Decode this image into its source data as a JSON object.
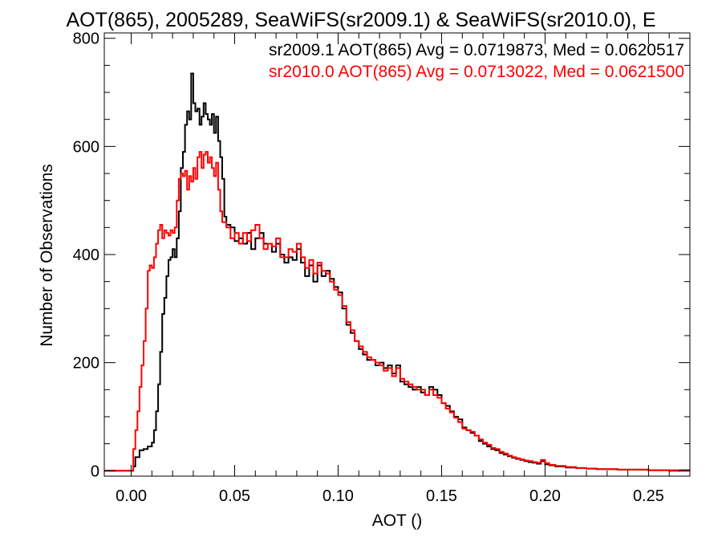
{
  "chart_data": {
    "type": "line",
    "title": "AOT(865), 2005289, SeaWiFS(sr2009.1) & SeaWiFS(sr2010.0), E",
    "xlabel": "AOT ()",
    "ylabel": "Number of Observations",
    "xlim": [
      -0.013,
      0.27
    ],
    "ylim": [
      -10,
      810
    ],
    "xticks": [
      0.0,
      0.05,
      0.1,
      0.15,
      0.2,
      0.25
    ],
    "xtick_labels": [
      "0.00",
      "0.05",
      "0.10",
      "0.15",
      "0.20",
      "0.25"
    ],
    "yticks": [
      0,
      200,
      400,
      600,
      800
    ],
    "ytick_labels": [
      "0",
      "200",
      "400",
      "600",
      "800"
    ],
    "grid": false,
    "step": true,
    "annotations": [
      {
        "text": "sr2009.1 AOT(865) Avg = 0.0719873, Med = 0.0620517",
        "color": "#000000"
      },
      {
        "text": "sr2010.0 AOT(865) Avg = 0.0713022, Med = 0.0621500",
        "color": "#ff0000"
      }
    ],
    "series": [
      {
        "color": "#000000",
        "points": [
          [
            -0.013,
            0
          ],
          [
            0.0,
            0
          ],
          [
            0.001,
            8
          ],
          [
            0.002,
            25
          ],
          [
            0.004,
            38
          ],
          [
            0.006,
            40
          ],
          [
            0.008,
            45
          ],
          [
            0.01,
            52
          ],
          [
            0.011,
            75
          ],
          [
            0.012,
            110
          ],
          [
            0.013,
            160
          ],
          [
            0.014,
            220
          ],
          [
            0.015,
            290
          ],
          [
            0.016,
            320
          ],
          [
            0.017,
            360
          ],
          [
            0.018,
            390
          ],
          [
            0.019,
            395
          ],
          [
            0.02,
            410
          ],
          [
            0.021,
            395
          ],
          [
            0.022,
            430
          ],
          [
            0.023,
            480
          ],
          [
            0.024,
            560
          ],
          [
            0.025,
            590
          ],
          [
            0.026,
            640
          ],
          [
            0.027,
            665
          ],
          [
            0.028,
            650
          ],
          [
            0.029,
            735
          ],
          [
            0.03,
            680
          ],
          [
            0.031,
            665
          ],
          [
            0.032,
            670
          ],
          [
            0.033,
            640
          ],
          [
            0.034,
            655
          ],
          [
            0.035,
            680
          ],
          [
            0.036,
            660
          ],
          [
            0.037,
            650
          ],
          [
            0.038,
            640
          ],
          [
            0.039,
            660
          ],
          [
            0.04,
            625
          ],
          [
            0.041,
            655
          ],
          [
            0.042,
            610
          ],
          [
            0.043,
            580
          ],
          [
            0.044,
            540
          ],
          [
            0.045,
            470
          ],
          [
            0.046,
            455
          ],
          [
            0.048,
            450
          ],
          [
            0.05,
            425
          ],
          [
            0.052,
            430
          ],
          [
            0.054,
            420
          ],
          [
            0.056,
            440
          ],
          [
            0.058,
            410
          ],
          [
            0.06,
            430
          ],
          [
            0.062,
            440
          ],
          [
            0.064,
            420
          ],
          [
            0.066,
            420
          ],
          [
            0.068,
            405
          ],
          [
            0.07,
            420
          ],
          [
            0.072,
            400
          ],
          [
            0.074,
            385
          ],
          [
            0.076,
            395
          ],
          [
            0.078,
            390
          ],
          [
            0.08,
            410
          ],
          [
            0.082,
            385
          ],
          [
            0.084,
            360
          ],
          [
            0.086,
            380
          ],
          [
            0.088,
            350
          ],
          [
            0.09,
            380
          ],
          [
            0.092,
            360
          ],
          [
            0.094,
            370
          ],
          [
            0.096,
            355
          ],
          [
            0.098,
            340
          ],
          [
            0.1,
            330
          ],
          [
            0.102,
            300
          ],
          [
            0.104,
            270
          ],
          [
            0.106,
            255
          ],
          [
            0.108,
            240
          ],
          [
            0.11,
            225
          ],
          [
            0.112,
            215
          ],
          [
            0.114,
            205
          ],
          [
            0.116,
            205
          ],
          [
            0.118,
            195
          ],
          [
            0.12,
            200
          ],
          [
            0.122,
            190
          ],
          [
            0.124,
            195
          ],
          [
            0.126,
            180
          ],
          [
            0.128,
            195
          ],
          [
            0.13,
            165
          ],
          [
            0.132,
            160
          ],
          [
            0.134,
            155
          ],
          [
            0.136,
            150
          ],
          [
            0.138,
            155
          ],
          [
            0.14,
            145
          ],
          [
            0.142,
            140
          ],
          [
            0.144,
            155
          ],
          [
            0.146,
            150
          ],
          [
            0.148,
            140
          ],
          [
            0.15,
            125
          ],
          [
            0.152,
            120
          ],
          [
            0.154,
            110
          ],
          [
            0.156,
            100
          ],
          [
            0.158,
            95
          ],
          [
            0.16,
            80
          ],
          [
            0.162,
            75
          ],
          [
            0.164,
            70
          ],
          [
            0.166,
            65
          ],
          [
            0.168,
            55
          ],
          [
            0.17,
            50
          ],
          [
            0.172,
            45
          ],
          [
            0.174,
            40
          ],
          [
            0.176,
            38
          ],
          [
            0.178,
            33
          ],
          [
            0.18,
            30
          ],
          [
            0.182,
            27
          ],
          [
            0.184,
            24
          ],
          [
            0.186,
            22
          ],
          [
            0.188,
            20
          ],
          [
            0.19,
            18
          ],
          [
            0.192,
            16
          ],
          [
            0.194,
            15
          ],
          [
            0.196,
            13
          ],
          [
            0.198,
            18
          ],
          [
            0.2,
            12
          ],
          [
            0.202,
            10
          ],
          [
            0.205,
            8
          ],
          [
            0.21,
            6
          ],
          [
            0.215,
            5
          ],
          [
            0.22,
            4
          ],
          [
            0.225,
            3
          ],
          [
            0.23,
            3
          ],
          [
            0.235,
            2
          ],
          [
            0.24,
            2
          ],
          [
            0.245,
            2
          ],
          [
            0.25,
            1
          ],
          [
            0.255,
            1
          ],
          [
            0.26,
            0
          ],
          [
            0.265,
            1
          ],
          [
            0.27,
            0
          ]
        ]
      },
      {
        "color": "#ff0000",
        "points": [
          [
            -0.013,
            0
          ],
          [
            0.0,
            0
          ],
          [
            0.001,
            40
          ],
          [
            0.002,
            75
          ],
          [
            0.003,
            110
          ],
          [
            0.004,
            155
          ],
          [
            0.005,
            195
          ],
          [
            0.006,
            240
          ],
          [
            0.007,
            300
          ],
          [
            0.008,
            370
          ],
          [
            0.009,
            380
          ],
          [
            0.01,
            375
          ],
          [
            0.011,
            395
          ],
          [
            0.012,
            420
          ],
          [
            0.013,
            445
          ],
          [
            0.014,
            455
          ],
          [
            0.015,
            430
          ],
          [
            0.016,
            445
          ],
          [
            0.017,
            440
          ],
          [
            0.018,
            435
          ],
          [
            0.019,
            445
          ],
          [
            0.02,
            440
          ],
          [
            0.021,
            450
          ],
          [
            0.022,
            500
          ],
          [
            0.023,
            540
          ],
          [
            0.024,
            550
          ],
          [
            0.025,
            545
          ],
          [
            0.026,
            555
          ],
          [
            0.027,
            520
          ],
          [
            0.028,
            545
          ],
          [
            0.029,
            535
          ],
          [
            0.03,
            560
          ],
          [
            0.031,
            540
          ],
          [
            0.032,
            580
          ],
          [
            0.033,
            590
          ],
          [
            0.034,
            560
          ],
          [
            0.035,
            585
          ],
          [
            0.036,
            590
          ],
          [
            0.037,
            570
          ],
          [
            0.038,
            580
          ],
          [
            0.039,
            560
          ],
          [
            0.04,
            545
          ],
          [
            0.041,
            570
          ],
          [
            0.042,
            520
          ],
          [
            0.043,
            480
          ],
          [
            0.044,
            460
          ],
          [
            0.046,
            450
          ],
          [
            0.048,
            430
          ],
          [
            0.05,
            440
          ],
          [
            0.052,
            420
          ],
          [
            0.054,
            440
          ],
          [
            0.056,
            425
          ],
          [
            0.058,
            445
          ],
          [
            0.06,
            455
          ],
          [
            0.062,
            430
          ],
          [
            0.064,
            410
          ],
          [
            0.066,
            420
          ],
          [
            0.068,
            415
          ],
          [
            0.07,
            430
          ],
          [
            0.072,
            395
          ],
          [
            0.074,
            395
          ],
          [
            0.076,
            410
          ],
          [
            0.078,
            405
          ],
          [
            0.08,
            420
          ],
          [
            0.082,
            395
          ],
          [
            0.084,
            375
          ],
          [
            0.086,
            390
          ],
          [
            0.088,
            365
          ],
          [
            0.09,
            385
          ],
          [
            0.092,
            370
          ],
          [
            0.094,
            365
          ],
          [
            0.096,
            350
          ],
          [
            0.098,
            335
          ],
          [
            0.1,
            325
          ],
          [
            0.102,
            305
          ],
          [
            0.104,
            275
          ],
          [
            0.106,
            260
          ],
          [
            0.108,
            240
          ],
          [
            0.11,
            230
          ],
          [
            0.112,
            220
          ],
          [
            0.114,
            210
          ],
          [
            0.116,
            205
          ],
          [
            0.118,
            200
          ],
          [
            0.12,
            195
          ],
          [
            0.122,
            185
          ],
          [
            0.124,
            190
          ],
          [
            0.126,
            175
          ],
          [
            0.128,
            190
          ],
          [
            0.13,
            170
          ],
          [
            0.132,
            165
          ],
          [
            0.134,
            160
          ],
          [
            0.136,
            155
          ],
          [
            0.138,
            150
          ],
          [
            0.14,
            150
          ],
          [
            0.142,
            140
          ],
          [
            0.144,
            150
          ],
          [
            0.146,
            140
          ],
          [
            0.148,
            135
          ],
          [
            0.15,
            125
          ],
          [
            0.152,
            115
          ],
          [
            0.154,
            108
          ],
          [
            0.156,
            98
          ],
          [
            0.158,
            90
          ],
          [
            0.16,
            78
          ],
          [
            0.162,
            75
          ],
          [
            0.164,
            72
          ],
          [
            0.166,
            65
          ],
          [
            0.168,
            58
          ],
          [
            0.17,
            52
          ],
          [
            0.172,
            48
          ],
          [
            0.174,
            42
          ],
          [
            0.176,
            40
          ],
          [
            0.178,
            35
          ],
          [
            0.18,
            32
          ],
          [
            0.182,
            28
          ],
          [
            0.184,
            25
          ],
          [
            0.186,
            23
          ],
          [
            0.188,
            21
          ],
          [
            0.19,
            19
          ],
          [
            0.192,
            18
          ],
          [
            0.194,
            16
          ],
          [
            0.196,
            15
          ],
          [
            0.198,
            20
          ],
          [
            0.2,
            14
          ],
          [
            0.202,
            11
          ],
          [
            0.205,
            9
          ],
          [
            0.21,
            7
          ],
          [
            0.215,
            5
          ],
          [
            0.22,
            4
          ],
          [
            0.225,
            3
          ],
          [
            0.23,
            3
          ],
          [
            0.235,
            2
          ],
          [
            0.24,
            2
          ],
          [
            0.245,
            2
          ],
          [
            0.25,
            1
          ],
          [
            0.255,
            1
          ],
          [
            0.26,
            1
          ],
          [
            0.265,
            0
          ],
          [
            0.27,
            0
          ]
        ]
      }
    ]
  }
}
